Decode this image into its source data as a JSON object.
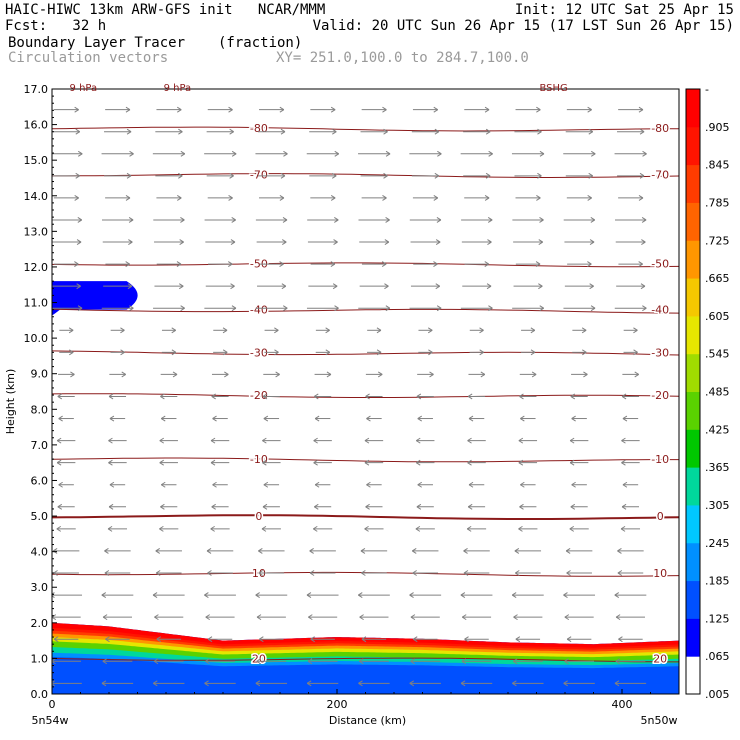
{
  "header": {
    "line1_left": "HAIC-HIWC 13km ARW-GFS init   NCAR/MMM",
    "line1_right": "Init: 12 UTC Sat 25 Apr 15",
    "line2_left": "Fcst:   32 h",
    "line2_right": "Valid: 20 UTC Sun 26 Apr 15 (17 LST Sun 26 Apr 15)",
    "line3_field": "Boundary Layer Tracer",
    "line3_units": "(fraction)",
    "line4_field": "Circulation vectors",
    "line4_xy": "XY= 251.0,100.0 to 284.7,100.0"
  },
  "chart_data": {
    "type": "heatmap",
    "xlabel": "Distance (km)",
    "ylabel": "Height (km)",
    "xlim": [
      0,
      440
    ],
    "ylim": [
      0,
      17
    ],
    "xticks": [
      "0",
      "200",
      "400"
    ],
    "yticks": [
      "0.0",
      "1.0",
      "2.0",
      "3.0",
      "4.0",
      "5.0",
      "6.0",
      "7.0",
      "8.0",
      "9.0",
      "10.0",
      "11.0",
      "12.0",
      "13.0",
      "14.0",
      "15.0",
      "16.0",
      "17.0"
    ],
    "endpoint_labels": {
      "left": "5n54w",
      "right": "5n50w"
    },
    "colorbar": {
      "labels": [
        ".005",
        ".065",
        ".125",
        ".185",
        ".245",
        ".305",
        ".365",
        ".425",
        ".485",
        ".545",
        ".605",
        ".665",
        ".725",
        ".785",
        ".845",
        ".905",
        "-"
      ],
      "colors": [
        "#ffffff",
        "#0000ff",
        "#0050ff",
        "#0090ff",
        "#00c8ff",
        "#00d89c",
        "#00c800",
        "#5ad200",
        "#a0dc00",
        "#e6e600",
        "#f5c800",
        "#ff9600",
        "#ff6400",
        "#ff3c00",
        "#ff1400",
        "#ff0000"
      ]
    },
    "tracer_surface": {
      "x_km": [
        0,
        40,
        80,
        120,
        160,
        200,
        260,
        320,
        380,
        440
      ],
      "top_km": [
        2.0,
        1.9,
        1.7,
        1.5,
        1.55,
        1.6,
        1.55,
        1.45,
        1.4,
        1.5
      ]
    },
    "tracer_aloft": {
      "x_km": [
        0,
        65
      ],
      "center_km": 11.2,
      "thickness_km": 0.8
    },
    "temperature_contours": [
      {
        "label": "20",
        "height_km": 1.0
      },
      {
        "label": "10",
        "height_km": 3.4
      },
      {
        "label": "0",
        "height_km": 5.0
      },
      {
        "label": "-10",
        "height_km": 6.6
      },
      {
        "label": "-20",
        "height_km": 8.4
      },
      {
        "label": "-30",
        "height_km": 9.6
      },
      {
        "label": "-40",
        "height_km": 10.8
      },
      {
        "label": "-50",
        "height_km": 12.1
      },
      {
        "label": "-70",
        "height_km": 14.6
      },
      {
        "label": "-80",
        "height_km": 15.9
      }
    ],
    "wind_regimes": [
      {
        "from_km": 0,
        "to_km": 4.5,
        "direction": "westward",
        "magnitude": 1.0
      },
      {
        "from_km": 4.5,
        "to_km": 8.5,
        "direction": "westward",
        "magnitude": 0.5
      },
      {
        "from_km": 8.5,
        "to_km": 10.5,
        "direction": "eastward",
        "magnitude": 0.4
      },
      {
        "from_km": 10.5,
        "to_km": 17,
        "direction": "eastward",
        "magnitude": 1.0
      }
    ],
    "top_labels": [
      "9 hPa",
      "9 hPa",
      "BSHG"
    ]
  }
}
